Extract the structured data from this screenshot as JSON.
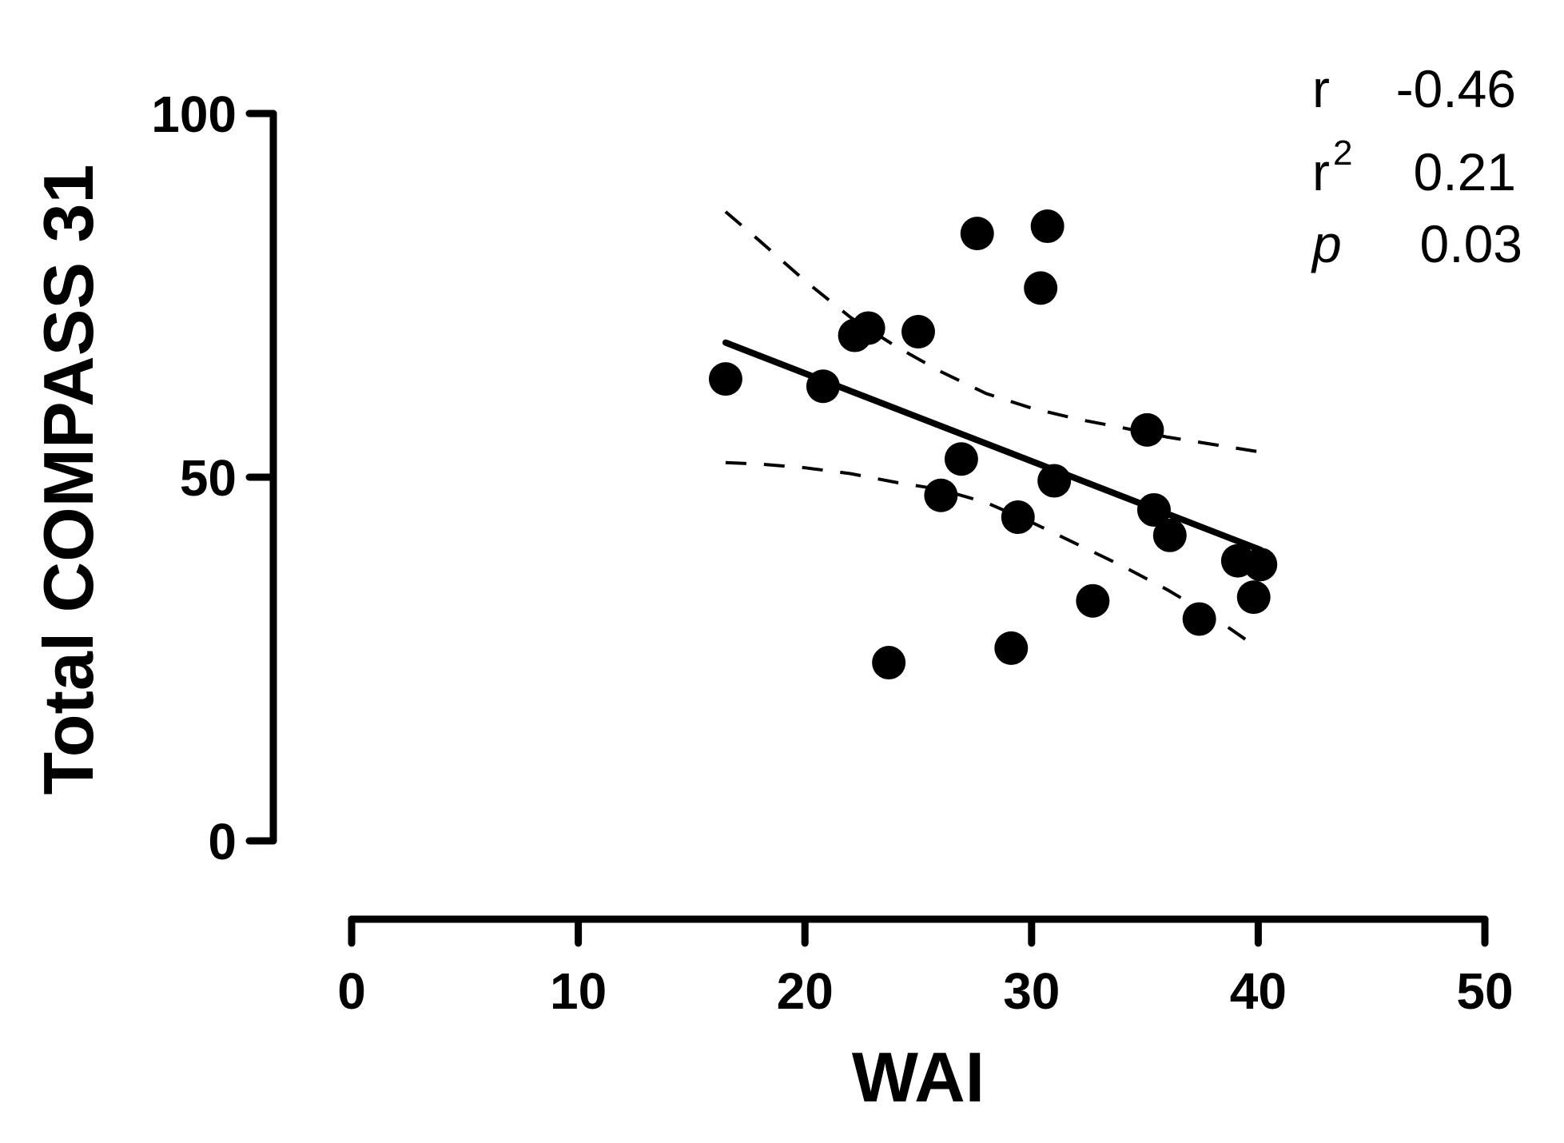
{
  "chart_data": {
    "type": "scatter",
    "title": "",
    "xlabel": "WAI",
    "ylabel": "Total COMPASS 31",
    "xlim": [
      0,
      50
    ],
    "ylim": [
      0,
      100
    ],
    "x_ticks": [
      "0",
      "10",
      "20",
      "30",
      "40",
      "50"
    ],
    "y_ticks": [
      "0",
      "50",
      "100"
    ],
    "grid": false,
    "legend": "none",
    "points": [
      {
        "x": 16.5,
        "y": 63.5
      },
      {
        "x": 20.8,
        "y": 62.5
      },
      {
        "x": 22.2,
        "y": 69.5
      },
      {
        "x": 22.8,
        "y": 70.5
      },
      {
        "x": 23.7,
        "y": 24.5
      },
      {
        "x": 25.0,
        "y": 70.0
      },
      {
        "x": 26.0,
        "y": 47.5
      },
      {
        "x": 26.9,
        "y": 52.5
      },
      {
        "x": 27.6,
        "y": 83.5
      },
      {
        "x": 29.1,
        "y": 26.5
      },
      {
        "x": 29.4,
        "y": 44.5
      },
      {
        "x": 30.4,
        "y": 76.0
      },
      {
        "x": 30.7,
        "y": 84.5
      },
      {
        "x": 31.0,
        "y": 49.5
      },
      {
        "x": 32.7,
        "y": 33.0
      },
      {
        "x": 35.1,
        "y": 56.5
      },
      {
        "x": 35.4,
        "y": 45.5
      },
      {
        "x": 36.1,
        "y": 42.0
      },
      {
        "x": 37.4,
        "y": 30.5
      },
      {
        "x": 39.1,
        "y": 38.5
      },
      {
        "x": 39.8,
        "y": 33.5
      },
      {
        "x": 40.1,
        "y": 38.0
      }
    ],
    "regression_line": {
      "x": [
        16.5,
        40.1
      ],
      "y": [
        68.5,
        40.0
      ]
    },
    "ci_upper": {
      "x": [
        16.5,
        18.0,
        20.0,
        22.0,
        24.0,
        26.0,
        28.0,
        30.0,
        32.0,
        34.0,
        36.0,
        38.0,
        40.0
      ],
      "y": [
        86.5,
        82.5,
        77.0,
        72.0,
        68.0,
        64.5,
        61.5,
        59.5,
        58.0,
        56.8,
        55.5,
        54.5,
        53.5
      ]
    },
    "ci_lower": {
      "x": [
        16.5,
        18.0,
        20.0,
        22.0,
        24.0,
        26.0,
        28.0,
        30.0,
        32.0,
        34.0,
        36.0,
        38.0,
        40.0
      ],
      "y": [
        52.0,
        51.8,
        51.3,
        50.5,
        49.3,
        48.3,
        46.5,
        43.8,
        40.8,
        37.8,
        34.5,
        30.8,
        26.5
      ]
    },
    "stats": {
      "r_label": "r",
      "r_value": "-0.46",
      "r2_label": "r",
      "r2_superscript": "2",
      "r2_value": "0.21",
      "p_label": "p",
      "p_value": "0.03"
    }
  }
}
